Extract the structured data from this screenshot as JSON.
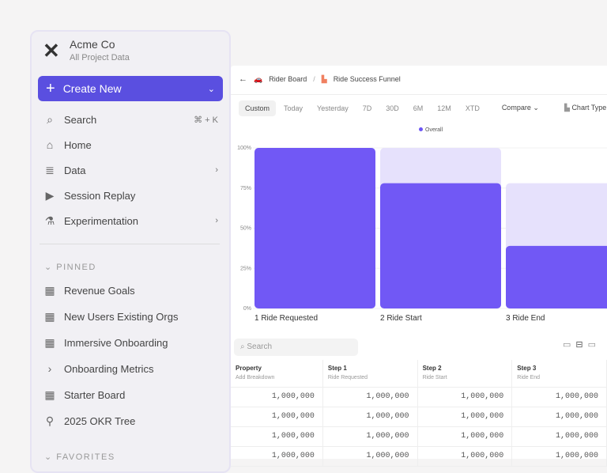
{
  "sidebar": {
    "org_name": "Acme Co",
    "org_sub": "All Project Data",
    "create_label": "Create New",
    "items": [
      {
        "label": "Search",
        "shortcut": "⌘ + K",
        "icon": "search-icon"
      },
      {
        "label": "Home",
        "icon": "home-icon"
      },
      {
        "label": "Data",
        "icon": "database-icon"
      },
      {
        "label": "Session Replay",
        "icon": "replay-icon"
      },
      {
        "label": "Experimentation",
        "icon": "flask-icon"
      }
    ],
    "pinned_title": "PINNED",
    "pinned": [
      {
        "label": "Revenue Goals"
      },
      {
        "label": "New Users Existing Orgs"
      },
      {
        "label": "Immersive Onboarding"
      },
      {
        "label": "Onboarding Metrics"
      },
      {
        "label": "Starter Board"
      },
      {
        "label": "2025 OKR Tree"
      }
    ],
    "favorites_title": "FAVORITES"
  },
  "main": {
    "breadcrumb": [
      "Rider Board",
      "Ride Success Funnel"
    ],
    "ranges": [
      "Custom",
      "Today",
      "Yesterday",
      "7D",
      "30D",
      "6M",
      "12M",
      "XTD"
    ],
    "compare": "Compare",
    "chart_type": "Chart Type",
    "search_placeholder": "Search",
    "table": {
      "headers": [
        {
          "title": "Property",
          "sub": "Add Breakdown"
        },
        {
          "title": "Step 1",
          "sub": "Ride Requested"
        },
        {
          "title": "Step 2",
          "sub": "Ride Start"
        },
        {
          "title": "Step 3",
          "sub": "Ride End"
        }
      ],
      "rows": [
        [
          "1,000,000",
          "1,000,000",
          "1,000,000",
          "1,000,000"
        ],
        [
          "1,000,000",
          "1,000,000",
          "1,000,000",
          "1,000,000"
        ],
        [
          "1,000,000",
          "1,000,000",
          "1,000,000",
          "1,000,000"
        ],
        [
          "1,000,000",
          "1,000,000",
          "1,000,000",
          "1,000,000"
        ]
      ]
    }
  },
  "chart_data": {
    "type": "bar",
    "legend": [
      "Overall"
    ],
    "yticks": [
      "0%",
      "25%",
      "50%",
      "75%",
      "100%"
    ],
    "ylim": [
      0,
      100
    ],
    "categories": [
      "1 Ride Requested",
      "2 Ride Start",
      "3 Ride End"
    ],
    "values": [
      100,
      78,
      39
    ],
    "ghost": [
      100,
      100,
      78
    ],
    "colors": {
      "bar": "#7158f5",
      "ghost": "#e6e1fc"
    }
  }
}
